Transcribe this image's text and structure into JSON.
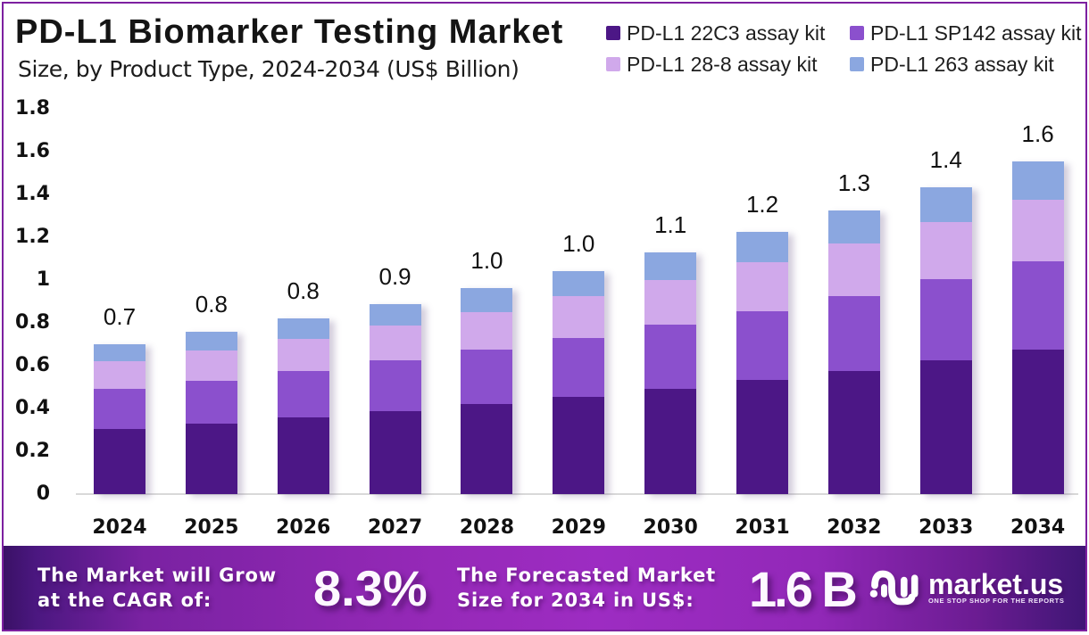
{
  "header": {
    "title": "PD-L1 Biomarker Testing Market",
    "subtitle": "Size, by Product Type, 2024-2034 (US$ Billion)"
  },
  "chart_data": {
    "type": "bar",
    "stacked": true,
    "title": "PD-L1 Biomarker Testing Market Size, by Product Type, 2024-2034 (US$ Billion)",
    "categories": [
      "2024",
      "2025",
      "2026",
      "2027",
      "2028",
      "2029",
      "2030",
      "2031",
      "2032",
      "2033",
      "2034"
    ],
    "series": [
      {
        "name": "PD-L1 22C3 assay kit",
        "color": "#4C1786",
        "values": [
          0.305,
          0.33,
          0.357,
          0.387,
          0.419,
          0.454,
          0.491,
          0.532,
          0.576,
          0.624,
          0.676
        ]
      },
      {
        "name": "PD-L1 SP142 assay kit",
        "color": "#8B50CD",
        "values": [
          0.186,
          0.201,
          0.218,
          0.236,
          0.255,
          0.276,
          0.299,
          0.324,
          0.351,
          0.38,
          0.412
        ]
      },
      {
        "name": "PD-L1 28-8 assay kit",
        "color": "#D0A9EB",
        "values": [
          0.13,
          0.14,
          0.152,
          0.164,
          0.178,
          0.193,
          0.209,
          0.226,
          0.245,
          0.265,
          0.287
        ]
      },
      {
        "name": "PD-L1 263 assay kit",
        "color": "#8BA7E0",
        "values": [
          0.081,
          0.087,
          0.094,
          0.102,
          0.111,
          0.12,
          0.13,
          0.141,
          0.152,
          0.165,
          0.179
        ]
      }
    ],
    "total_labels": [
      "0.7",
      "0.8",
      "0.8",
      "0.9",
      "1.0",
      "1.0",
      "1.1",
      "1.2",
      "1.3",
      "1.4",
      "1.6"
    ],
    "y_ticks": [
      "0",
      "0.2",
      "0.4",
      "0.6",
      "0.8",
      "1",
      "1.2",
      "1.4",
      "1.6",
      "1.8"
    ],
    "ylim": [
      0,
      1.8
    ],
    "xlabel": "",
    "ylabel": "",
    "grid": false,
    "legend_position": "top-right"
  },
  "footer": {
    "cagr_label_line1": "The Market will Grow",
    "cagr_label_line2": "at the CAGR of:",
    "cagr_value": "8.3%",
    "forecast_label_line1": "The Forecasted Market",
    "forecast_label_line2": "Size for 2034 in US$:",
    "forecast_value": "1.6 B",
    "brand_name": "market.us",
    "brand_tagline": "ONE STOP SHOP FOR THE REPORTS"
  },
  "colors": {
    "frame_border": "#7D20A0",
    "baseline": "#D9D9D9",
    "footer_gradient_left": "#42157A",
    "footer_gradient_mid": "#9E2CC2",
    "footer_gradient_right": "#3F1675"
  }
}
